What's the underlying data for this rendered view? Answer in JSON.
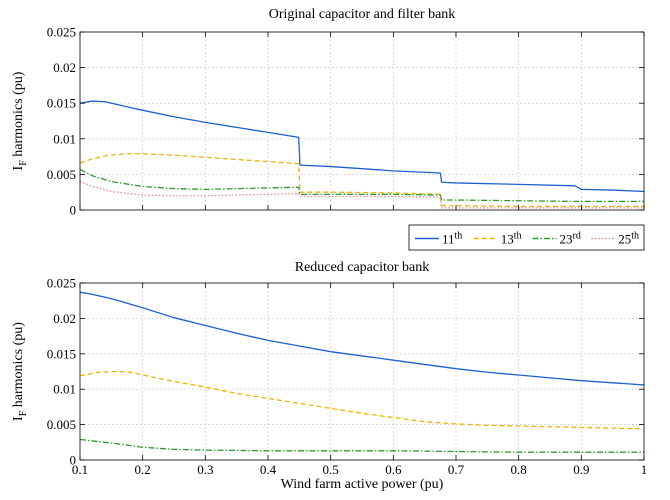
{
  "chart_data": [
    {
      "type": "line",
      "title": "Original capacitor and filter bank",
      "ylabel": "I",
      "ylabel_sub": "F",
      "ylabel_rest": " harmonics (pu)",
      "xlabel": "",
      "xlim": [
        0.1,
        1.0
      ],
      "ylim": [
        0,
        0.025
      ],
      "yticks": [
        0,
        0.005,
        0.01,
        0.015,
        0.02,
        0.025
      ],
      "ytick_labels": [
        "0",
        "0.005",
        "0.01",
        "0.015",
        "0.02",
        "0.025"
      ],
      "xticks": [
        0.1,
        0.2,
        0.3,
        0.4,
        0.5,
        0.6,
        0.7,
        0.8,
        0.9,
        1.0
      ],
      "xtick_labels": [],
      "grid": true,
      "series": [
        {
          "name": "11th",
          "color": "#1f5fd1",
          "dash": "",
          "x": [
            0.1,
            0.12,
            0.14,
            0.16,
            0.18,
            0.2,
            0.25,
            0.3,
            0.35,
            0.4,
            0.449,
            0.451,
            0.5,
            0.55,
            0.6,
            0.675,
            0.677,
            0.7,
            0.8,
            0.89,
            0.9,
            0.95,
            1.0
          ],
          "y": [
            0.015,
            0.0153,
            0.0152,
            0.0148,
            0.0144,
            0.014,
            0.0131,
            0.0123,
            0.0116,
            0.0109,
            0.0102,
            0.0063,
            0.0061,
            0.0058,
            0.0055,
            0.0052,
            0.0039,
            0.0038,
            0.0036,
            0.0034,
            0.0029,
            0.0028,
            0.0026
          ]
        },
        {
          "name": "13th",
          "color": "#f0b400",
          "dash": "5 3",
          "x": [
            0.1,
            0.12,
            0.14,
            0.16,
            0.18,
            0.2,
            0.25,
            0.3,
            0.35,
            0.4,
            0.449,
            0.451,
            0.5,
            0.6,
            0.675,
            0.677,
            0.7,
            0.8,
            0.9,
            1.0
          ],
          "y": [
            0.0066,
            0.0072,
            0.0076,
            0.0078,
            0.0079,
            0.0079,
            0.0077,
            0.0074,
            0.0071,
            0.0068,
            0.0065,
            0.0025,
            0.0025,
            0.0024,
            0.0022,
            0.0006,
            0.0006,
            0.0005,
            0.0005,
            0.0005
          ]
        },
        {
          "name": "23rd",
          "color": "#2e9a2e",
          "dash": "6 2 1.5 2",
          "x": [
            0.1,
            0.12,
            0.15,
            0.2,
            0.25,
            0.3,
            0.35,
            0.4,
            0.449,
            0.451,
            0.5,
            0.6,
            0.675,
            0.677,
            0.7,
            0.8,
            0.9,
            1.0
          ],
          "y": [
            0.0057,
            0.0048,
            0.004,
            0.0033,
            0.003,
            0.0029,
            0.003,
            0.0031,
            0.0032,
            0.0022,
            0.0022,
            0.0022,
            0.0021,
            0.0014,
            0.0014,
            0.0013,
            0.0012,
            0.0012
          ]
        },
        {
          "name": "25th",
          "color": "#e48a8a",
          "dash": "1.5 2",
          "x": [
            0.1,
            0.12,
            0.15,
            0.2,
            0.25,
            0.3,
            0.35,
            0.4,
            0.449,
            0.451,
            0.5,
            0.6,
            0.675,
            0.677,
            0.7,
            0.8,
            0.9,
            1.0
          ],
          "y": [
            0.004,
            0.0033,
            0.0026,
            0.0021,
            0.002,
            0.002,
            0.0021,
            0.0022,
            0.0023,
            0.0019,
            0.0019,
            0.0019,
            0.0018,
            0.0003,
            0.0003,
            0.0003,
            0.0003,
            0.0003
          ]
        }
      ]
    },
    {
      "type": "line",
      "title": "Reduced capacitor bank",
      "ylabel": "I",
      "ylabel_sub": "F",
      "ylabel_rest": " harmonics (pu)",
      "xlabel": "Wind farm active power (pu)",
      "xlim": [
        0.1,
        1.0
      ],
      "ylim": [
        0,
        0.025
      ],
      "yticks": [
        0,
        0.005,
        0.01,
        0.015,
        0.02,
        0.025
      ],
      "ytick_labels": [
        "0",
        "0.005",
        "0.01",
        "0.015",
        "0.02",
        "0.025"
      ],
      "xticks": [
        0.1,
        0.2,
        0.3,
        0.4,
        0.5,
        0.6,
        0.7,
        0.8,
        0.9,
        1.0
      ],
      "xtick_labels": [
        "0.1",
        "0.2",
        "0.3",
        "0.4",
        "0.5",
        "0.6",
        "0.7",
        "0.8",
        "0.9",
        "1"
      ],
      "grid": true,
      "series": [
        {
          "name": "11th",
          "color": "#1f5fd1",
          "dash": "",
          "x": [
            0.1,
            0.12,
            0.15,
            0.2,
            0.25,
            0.3,
            0.35,
            0.4,
            0.45,
            0.5,
            0.55,
            0.6,
            0.65,
            0.7,
            0.75,
            0.8,
            0.85,
            0.9,
            0.95,
            1.0
          ],
          "y": [
            0.0237,
            0.0234,
            0.0228,
            0.0215,
            0.0201,
            0.019,
            0.0179,
            0.0169,
            0.0161,
            0.0153,
            0.0147,
            0.0141,
            0.0135,
            0.0129,
            0.0124,
            0.012,
            0.0116,
            0.0112,
            0.0109,
            0.0106
          ]
        },
        {
          "name": "13th",
          "color": "#f0b400",
          "dash": "5 3",
          "x": [
            0.1,
            0.13,
            0.16,
            0.18,
            0.2,
            0.25,
            0.3,
            0.35,
            0.4,
            0.45,
            0.5,
            0.55,
            0.6,
            0.65,
            0.7,
            0.75,
            0.8,
            0.85,
            0.9,
            0.95,
            1.0
          ],
          "y": [
            0.0119,
            0.0124,
            0.0125,
            0.0124,
            0.012,
            0.0111,
            0.0103,
            0.0094,
            0.0087,
            0.008,
            0.0073,
            0.0066,
            0.006,
            0.0054,
            0.0051,
            0.0049,
            0.0048,
            0.0047,
            0.0046,
            0.0045,
            0.0044
          ]
        },
        {
          "name": "23rd",
          "color": "#2e9a2e",
          "dash": "6 2 1.5 2",
          "x": [
            0.1,
            0.15,
            0.2,
            0.25,
            0.3,
            0.4,
            0.5,
            0.6,
            0.7,
            0.8,
            0.9,
            1.0
          ],
          "y": [
            0.0029,
            0.0024,
            0.0018,
            0.0015,
            0.0014,
            0.0013,
            0.0013,
            0.0013,
            0.0012,
            0.0011,
            0.0011,
            0.0011
          ]
        }
      ]
    }
  ],
  "legend": {
    "placement": "between-panels-right",
    "items": [
      {
        "base": "11",
        "sup": "th",
        "color": "#1f5fd1",
        "dash": ""
      },
      {
        "base": "13",
        "sup": "th",
        "color": "#f0b400",
        "dash": "5 3"
      },
      {
        "base": "23",
        "sup": "rd",
        "color": "#2e9a2e",
        "dash": "6 2 1.5 2"
      },
      {
        "base": "25",
        "sup": "th",
        "color": "#e48a8a",
        "dash": "1.5 2"
      }
    ]
  }
}
